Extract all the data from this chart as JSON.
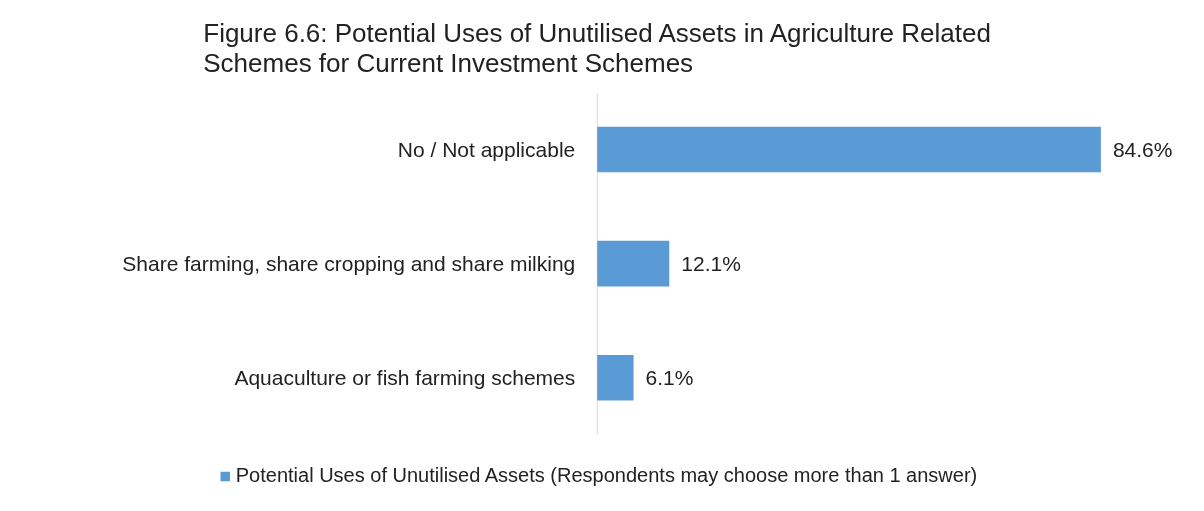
{
  "chart_data": {
    "type": "bar",
    "orientation": "horizontal",
    "title": "Figure 6.6: Potential Uses of Unutilised Assets in Agriculture Related Schemes for Current Investment Schemes",
    "categories": [
      "No / Not applicable",
      "Share farming, share cropping and share milking",
      "Aquaculture or fish farming schemes"
    ],
    "series": [
      {
        "name": "Potential Uses of Unutilised Assets (Respondents may choose more than 1 answer)",
        "color": "#5b9bd5",
        "values": [
          84.6,
          12.1,
          6.1
        ],
        "value_labels": [
          "84.6%",
          "12.1%",
          "6.1%"
        ]
      }
    ],
    "legend": "bottom",
    "grid": false
  }
}
